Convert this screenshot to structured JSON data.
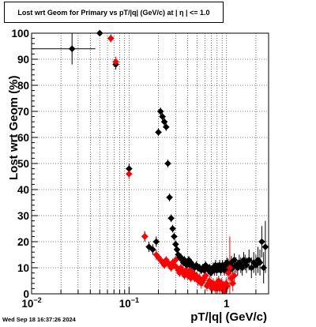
{
  "chart_data": {
    "type": "scatter",
    "title": "Lost wrt Geom for Primary vs pT/|q| (GeV/c) at |  η  | <= 1.0",
    "xlabel": "pT/|q| (GeV/c)",
    "ylabel": "Lost wrt Geom (%)",
    "x_scale": "log",
    "xlim": [
      0.01,
      2.7
    ],
    "ylim": [
      0,
      100
    ],
    "grid": true,
    "x_ticks": [
      {
        "value": 0.01,
        "base": "10",
        "exp": "−2"
      },
      {
        "value": 0.1,
        "base": "10",
        "exp": "−1"
      },
      {
        "value": 1,
        "base": "1",
        "exp": ""
      }
    ],
    "y_ticks": [
      0,
      10,
      20,
      30,
      40,
      50,
      60,
      70,
      80,
      90,
      100
    ],
    "series": [
      {
        "color": "#000000",
        "x": [
          0.026,
          0.05,
          0.065,
          0.073,
          0.1,
          0.145,
          0.16,
          0.175,
          0.19,
          0.2,
          0.21,
          0.22,
          0.23,
          0.24,
          0.25,
          0.26,
          0.27,
          0.28,
          0.29,
          0.3,
          0.31,
          0.32,
          0.33,
          0.34,
          0.35,
          0.36,
          0.37,
          0.38,
          0.39,
          0.4,
          0.41,
          0.42,
          0.43,
          0.44,
          0.45,
          0.47,
          0.49,
          0.51,
          0.53,
          0.55,
          0.57,
          0.59,
          0.61,
          0.63,
          0.65,
          0.67,
          0.69,
          0.71,
          0.73,
          0.75,
          0.77,
          0.79,
          0.81,
          0.83,
          0.85,
          0.87,
          0.89,
          0.91,
          0.93,
          0.95,
          0.97,
          0.99,
          1.01,
          1.04,
          1.08,
          1.12,
          1.16,
          1.2,
          1.25,
          1.3,
          1.35,
          1.4,
          1.45,
          1.5,
          1.55,
          1.6,
          1.7,
          1.8,
          1.9,
          2.0,
          2.1,
          2.2,
          2.3,
          2.4,
          2.5
        ],
        "y": [
          94,
          100,
          98,
          88,
          48,
          22,
          18,
          17,
          20,
          62,
          70,
          68,
          66,
          64,
          50,
          37,
          29,
          25,
          22,
          19,
          17,
          15,
          14,
          14,
          13,
          12,
          13,
          12,
          11,
          12,
          13,
          11,
          12,
          11,
          11,
          10,
          11,
          10,
          10,
          9,
          10,
          9,
          11,
          10,
          9,
          10,
          8,
          9,
          10,
          9,
          11,
          9,
          10,
          10,
          11,
          9,
          10,
          11,
          10,
          9,
          11,
          10,
          12,
          11,
          9,
          12,
          10,
          13,
          11,
          10,
          12,
          11,
          10,
          13,
          12,
          11,
          13,
          10,
          12,
          11,
          13,
          12,
          20,
          10,
          18
        ],
        "yerr": [
          6,
          0,
          1.5,
          2,
          2,
          2,
          2,
          2,
          2,
          1.5,
          1.5,
          1.5,
          1.5,
          1.5,
          1.5,
          1.5,
          1.5,
          1.5,
          1.5,
          1.5,
          1.5,
          1.5,
          1.5,
          1.5,
          1.5,
          1.5,
          1.5,
          1.5,
          1.5,
          1.5,
          1.5,
          1.5,
          1.5,
          1.5,
          1.5,
          1.5,
          1.5,
          1.5,
          1.5,
          1.5,
          1.5,
          1.5,
          1.5,
          1.5,
          1.5,
          1.5,
          1.5,
          2,
          2,
          2,
          2,
          2,
          2,
          2,
          2,
          2,
          2,
          2,
          2,
          2,
          2,
          2,
          2,
          2.5,
          2.5,
          2.5,
          2.5,
          2.5,
          3,
          3,
          3,
          3,
          3,
          3,
          3,
          3,
          4,
          4,
          4,
          4,
          5,
          5,
          6,
          6,
          10
        ]
      },
      {
        "color": "#ff0000",
        "x": [
          0.065,
          0.073,
          0.1,
          0.145,
          0.19,
          0.2,
          0.21,
          0.22,
          0.23,
          0.24,
          0.25,
          0.26,
          0.27,
          0.28,
          0.29,
          0.3,
          0.31,
          0.32,
          0.33,
          0.34,
          0.35,
          0.36,
          0.37,
          0.38,
          0.39,
          0.4,
          0.41,
          0.42,
          0.43,
          0.44,
          0.45,
          0.47,
          0.49,
          0.51,
          0.53,
          0.55,
          0.57,
          0.59,
          0.61,
          0.63,
          0.65,
          0.67,
          0.69,
          0.71,
          0.73,
          0.75,
          0.77,
          0.79,
          0.81,
          0.83,
          0.85,
          0.87,
          0.89,
          0.91,
          0.93,
          0.95,
          0.97,
          0.99,
          1.01,
          1.04,
          1.08,
          1.12,
          1.16,
          1.2
        ],
        "y": [
          98,
          89,
          46,
          22,
          15,
          14,
          13,
          12,
          11,
          13,
          12,
          11,
          10,
          12,
          11,
          13,
          10,
          9,
          8,
          10,
          9,
          8,
          7,
          9,
          8,
          7,
          8,
          9,
          6,
          7,
          8,
          6,
          7,
          5,
          6,
          4,
          5,
          6,
          7,
          3,
          4,
          5,
          3,
          2,
          4,
          3,
          2,
          4,
          3,
          5,
          2,
          3,
          4,
          2,
          3,
          1,
          2,
          4,
          3,
          8,
          10,
          6,
          4,
          7
        ],
        "yerr": [
          1.5,
          2,
          2,
          2,
          2,
          1.5,
          1.5,
          1.5,
          1.5,
          1.5,
          1.5,
          1.5,
          1.5,
          1.5,
          1.5,
          1.5,
          1.5,
          1.5,
          1.5,
          1.5,
          1.5,
          1.5,
          1.5,
          1.5,
          1.5,
          1.5,
          1.5,
          1.5,
          1.5,
          1.5,
          1.5,
          1.5,
          1.5,
          2,
          2,
          2,
          2,
          2,
          2,
          2,
          2,
          2,
          2,
          2,
          2,
          2,
          2,
          2,
          2,
          2,
          2,
          2,
          2,
          2,
          2,
          2,
          2,
          2,
          2,
          3,
          12,
          3,
          3,
          3
        ]
      }
    ]
  },
  "footer": {
    "datestamp": "Wed Sep 18 16:37:26 2024"
  }
}
